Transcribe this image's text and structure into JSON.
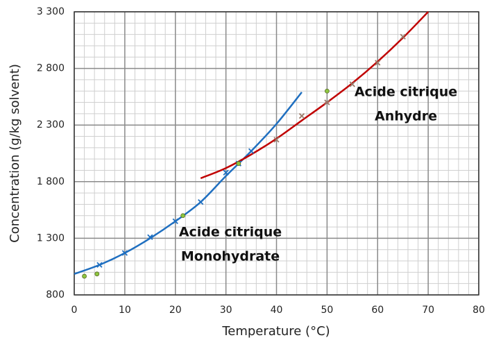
{
  "chart_data": {
    "type": "line",
    "xlabel": "Temperature  (°C)",
    "ylabel": "Concentration  (g/kg solvent)",
    "xlim": [
      0,
      80
    ],
    "xticks": [
      0,
      10,
      20,
      30,
      40,
      50,
      60,
      70,
      80
    ],
    "ylim": [
      800,
      3300
    ],
    "yticks": [
      800,
      {
        "value": 1300,
        "label": "1 300"
      },
      {
        "value": 1800,
        "label": "1 800"
      },
      {
        "value": 2300,
        "label": "2 300"
      },
      {
        "value": 2800,
        "label": "2 800"
      },
      {
        "value": 3300,
        "label": "3 300"
      }
    ],
    "grid": true,
    "minor_grid": {
      "xstep": 2,
      "ystep": 100
    },
    "series": [
      {
        "style": "line",
        "color": "#1f6fc0",
        "x": [
          0,
          5,
          10,
          15,
          20,
          25,
          30,
          35,
          40,
          45
        ],
        "values": [
          985,
          1065,
          1170,
          1300,
          1450,
          1620,
          1850,
          2070,
          2310,
          2590
        ]
      },
      {
        "style": "line",
        "color": "#c00000",
        "x": [
          25,
          30,
          35,
          40,
          45,
          50,
          55,
          60,
          65,
          70
        ],
        "values": [
          1830,
          1920,
          2040,
          2180,
          2340,
          2500,
          2670,
          2860,
          3070,
          3300
        ]
      },
      {
        "style": "cross",
        "color": "#1f6fc0",
        "x": [
          5,
          10,
          15,
          20,
          25,
          30,
          32.5,
          35
        ],
        "values": [
          1065,
          1170,
          1310,
          1450,
          1620,
          1880,
          1960,
          2070
        ]
      },
      {
        "style": "cross",
        "color": "#9a7a6a",
        "x": [
          40,
          45,
          50,
          55,
          60,
          65
        ],
        "values": [
          2170,
          2380,
          2500,
          2660,
          2850,
          3080
        ]
      },
      {
        "style": "dot",
        "color": "#8dc63f",
        "x": [
          2,
          4.5,
          21.5,
          32.5,
          50
        ],
        "values": [
          965,
          985,
          1500,
          1960,
          2600
        ]
      }
    ],
    "annotations": [
      [
        "Acide citrique",
        "Anhydre"
      ],
      [
        "Acide citrique",
        "Monohydrate"
      ]
    ]
  }
}
